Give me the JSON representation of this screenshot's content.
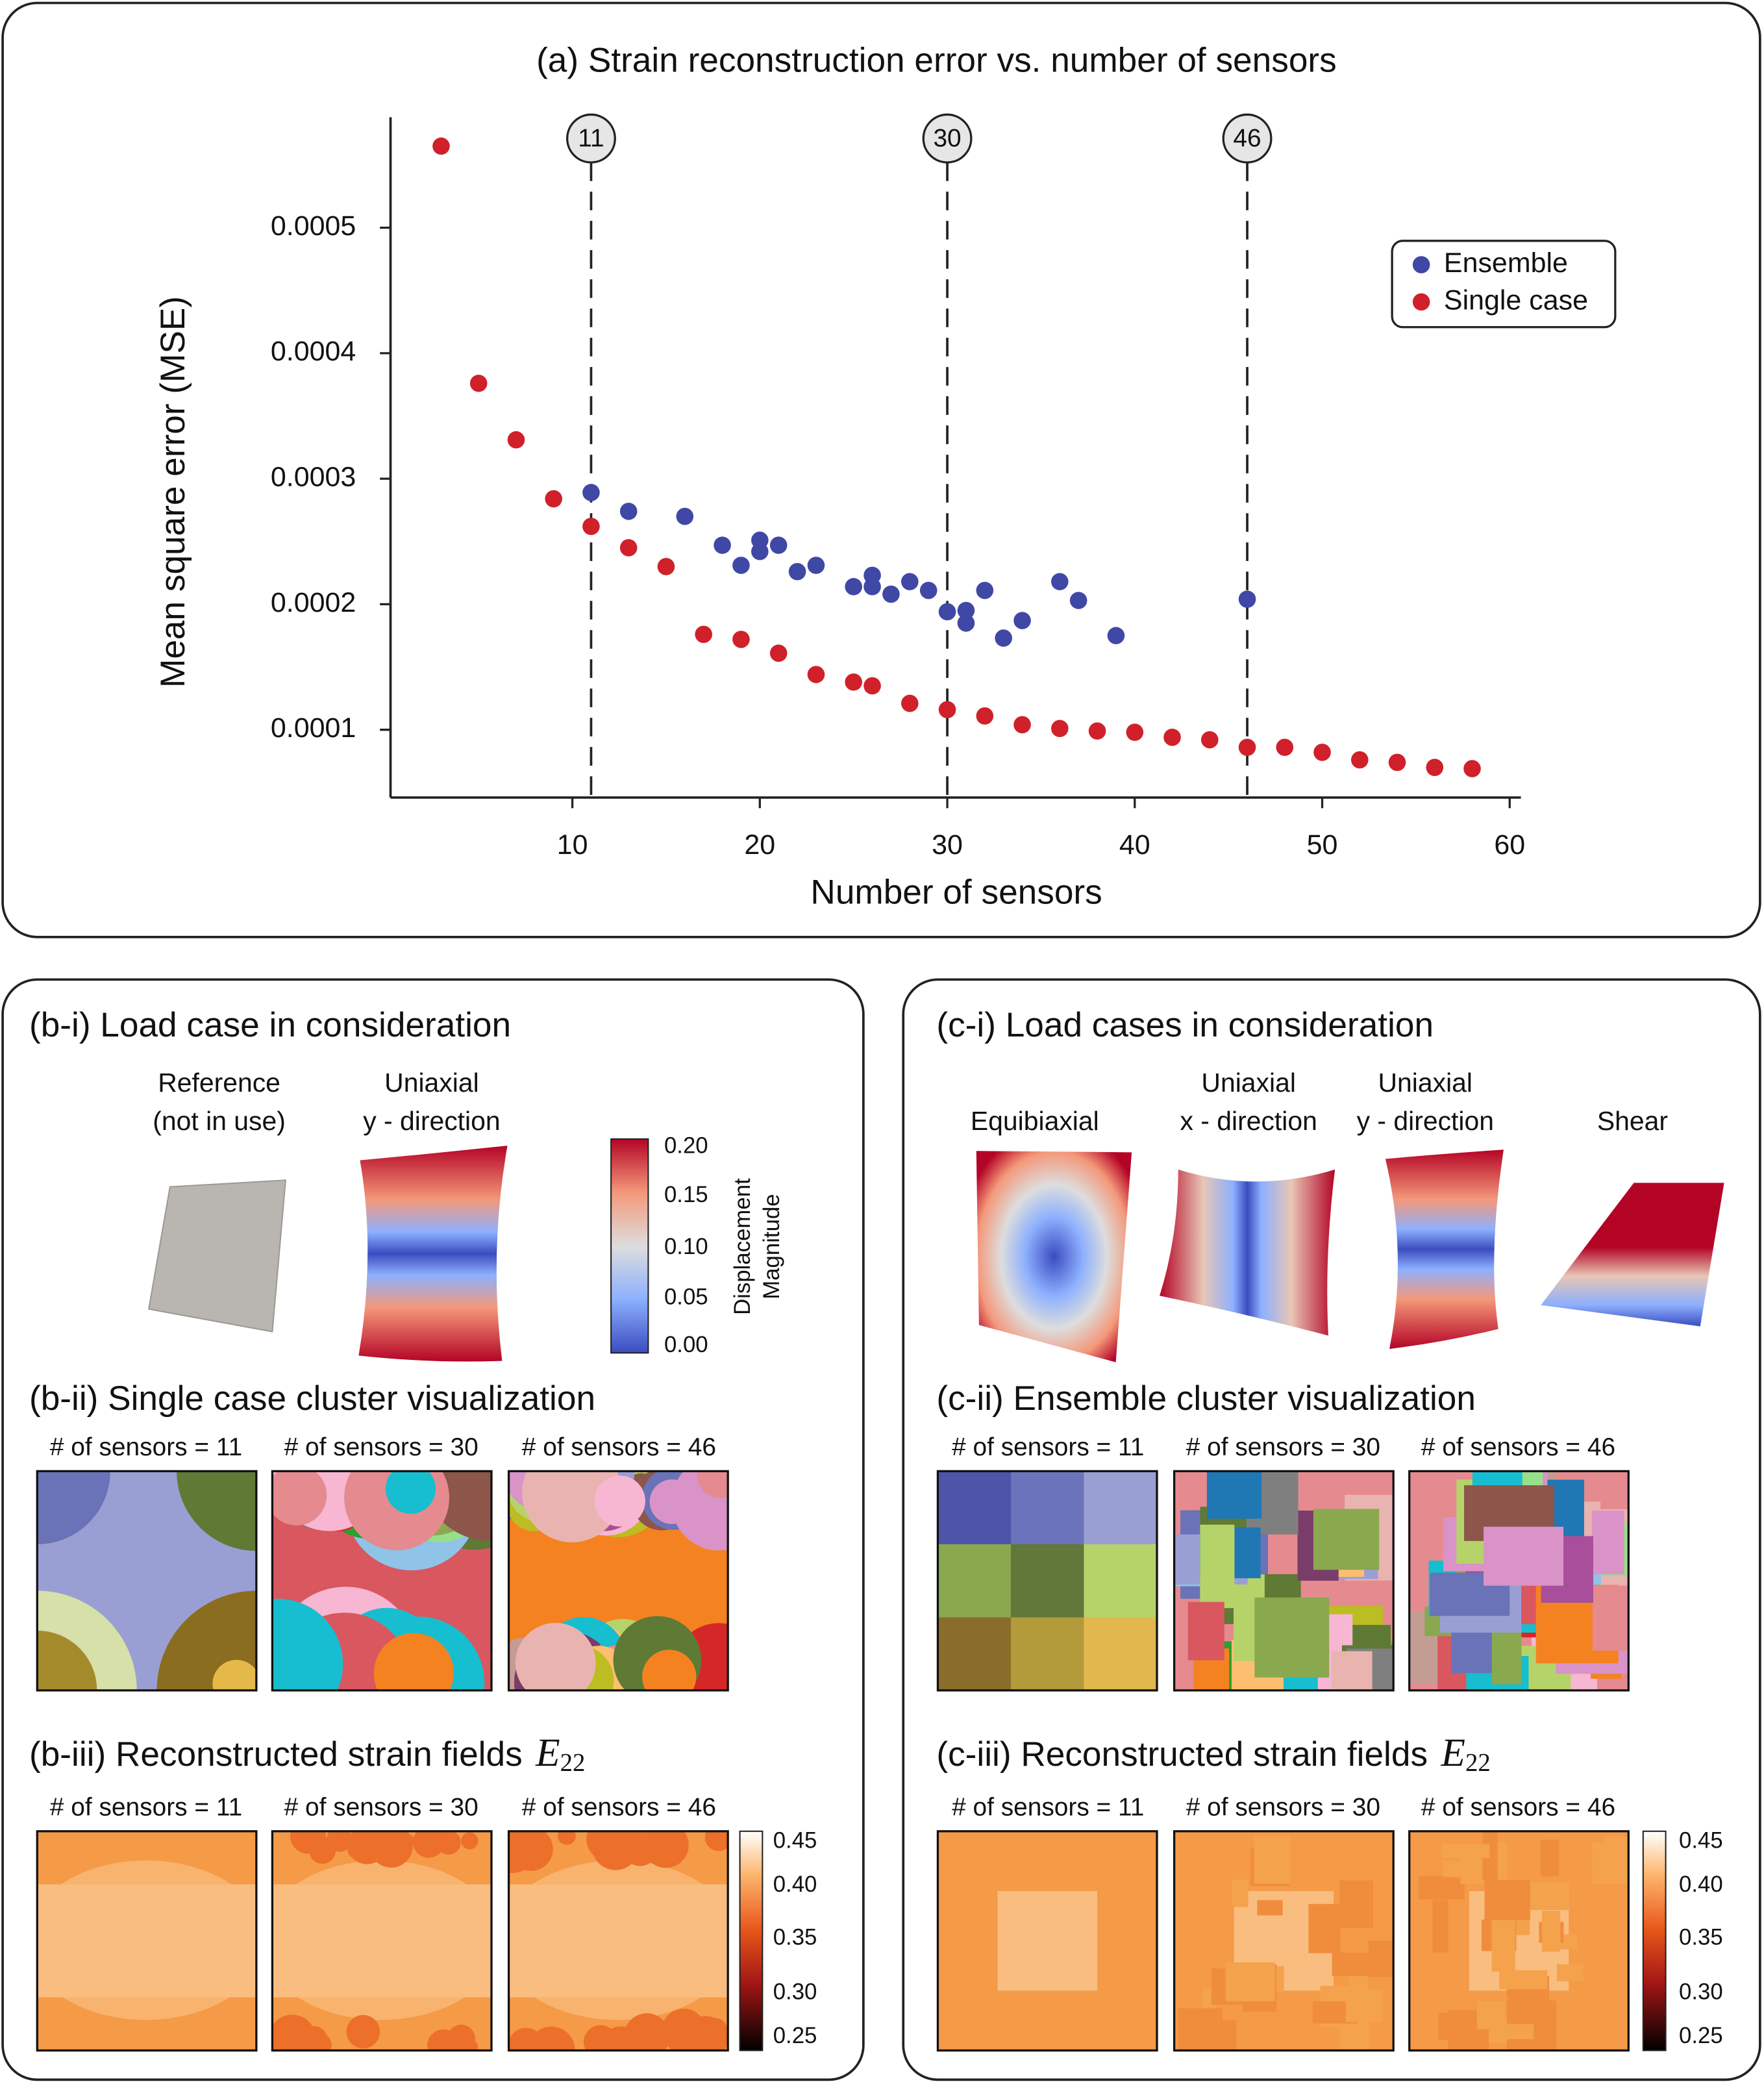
{
  "chart_data": {
    "type": "scatter",
    "title": "(a) Strain reconstruction error vs. number of sensors",
    "x_label": "Number of sensors",
    "y_label": "Mean square error (MSE)",
    "xlim": [
      0.3,
      60.6
    ],
    "ylim": [
      4.6e-05,
      0.000588
    ],
    "xticks": [
      10,
      20,
      30,
      40,
      50,
      60
    ],
    "yticks": [
      0.0001,
      0.0002,
      0.0003,
      0.0004,
      0.0005
    ],
    "grid": false,
    "legend": "upper right",
    "vlines": [
      11,
      30,
      46
    ],
    "series": [
      {
        "name": "Ensemble",
        "color": "#3f48a5",
        "x": [
          11,
          13,
          16,
          18,
          19,
          20,
          20,
          21,
          22,
          23,
          25,
          26,
          26,
          27,
          28,
          29,
          30,
          31,
          31,
          32,
          33,
          34,
          36,
          37,
          39,
          46
        ],
        "values": [
          0.000289,
          0.000274,
          0.00027,
          0.000247,
          0.000231,
          0.000251,
          0.000242,
          0.000247,
          0.000226,
          0.000231,
          0.000214,
          0.000223,
          0.000214,
          0.000208,
          0.000218,
          0.000211,
          0.000194,
          0.000195,
          0.000185,
          0.000211,
          0.000173,
          0.000187,
          0.000218,
          0.000203,
          0.000175,
          0.000204
        ]
      },
      {
        "name": "Single case",
        "color": "#d0202a",
        "x": [
          3,
          5,
          7,
          9,
          11,
          13,
          15,
          17,
          19,
          21,
          23,
          25,
          26,
          28,
          30,
          32,
          34,
          36,
          38,
          40,
          42,
          44,
          46,
          48,
          50,
          52,
          54,
          56,
          58
        ],
        "values": [
          0.000565,
          0.000376,
          0.000331,
          0.000284,
          0.000262,
          0.000245,
          0.00023,
          0.000176,
          0.000172,
          0.000161,
          0.000144,
          0.000138,
          0.000135,
          0.000121,
          0.000116,
          0.000111,
          0.000104,
          0.000101,
          9.9e-05,
          9.8e-05,
          9.4e-05,
          9.2e-05,
          8.6e-05,
          8.6e-05,
          8.2e-05,
          7.6e-05,
          7.4e-05,
          7e-05,
          6.9e-05
        ]
      }
    ]
  },
  "panel_b": {
    "load_title": "(b-i) Load case in consideration",
    "cases": [
      {
        "lines": [
          "Reference",
          "(not in use)"
        ]
      },
      {
        "lines": [
          "Uniaxial",
          "y - direction"
        ]
      }
    ],
    "colorbar": {
      "label": [
        "Displacement",
        "Magnitude"
      ],
      "ticks": [
        "0.20",
        "0.15",
        "0.10",
        "0.05",
        "0.00"
      ]
    },
    "cluster_title": "(b-ii) Single case cluster visualization",
    "cluster_labels": [
      "# of sensors = 11",
      "# of sensors = 30",
      "# of sensors = 46"
    ],
    "strain_title": "(b-iii) Reconstructed strain fields",
    "strain_symbol": "E",
    "strain_subscript": "22",
    "strain_labels": [
      "# of sensors = 11",
      "# of sensors = 30",
      "# of sensors = 46"
    ],
    "strain_colorbar_ticks": [
      "0.45",
      "0.40",
      "0.35",
      "0.30",
      "0.25"
    ]
  },
  "panel_c": {
    "load_title": "(c-i) Load cases in consideration",
    "cases": [
      {
        "lines": [
          "Equibiaxial"
        ]
      },
      {
        "lines": [
          "Uniaxial",
          "x - direction"
        ]
      },
      {
        "lines": [
          "Uniaxial",
          "y - direction"
        ]
      },
      {
        "lines": [
          "Shear"
        ]
      }
    ],
    "cluster_title": "(c-ii) Ensemble cluster visualization",
    "cluster_labels": [
      "# of sensors = 11",
      "# of sensors = 30",
      "# of sensors = 46"
    ],
    "strain_title": "(c-iii) Reconstructed strain fields",
    "strain_symbol": "E",
    "strain_subscript": "22",
    "strain_labels": [
      "# of sensors = 11",
      "# of sensors = 30",
      "# of sensors = 46"
    ],
    "strain_colorbar_ticks": [
      "0.45",
      "0.40",
      "0.35",
      "0.30",
      "0.25"
    ]
  }
}
